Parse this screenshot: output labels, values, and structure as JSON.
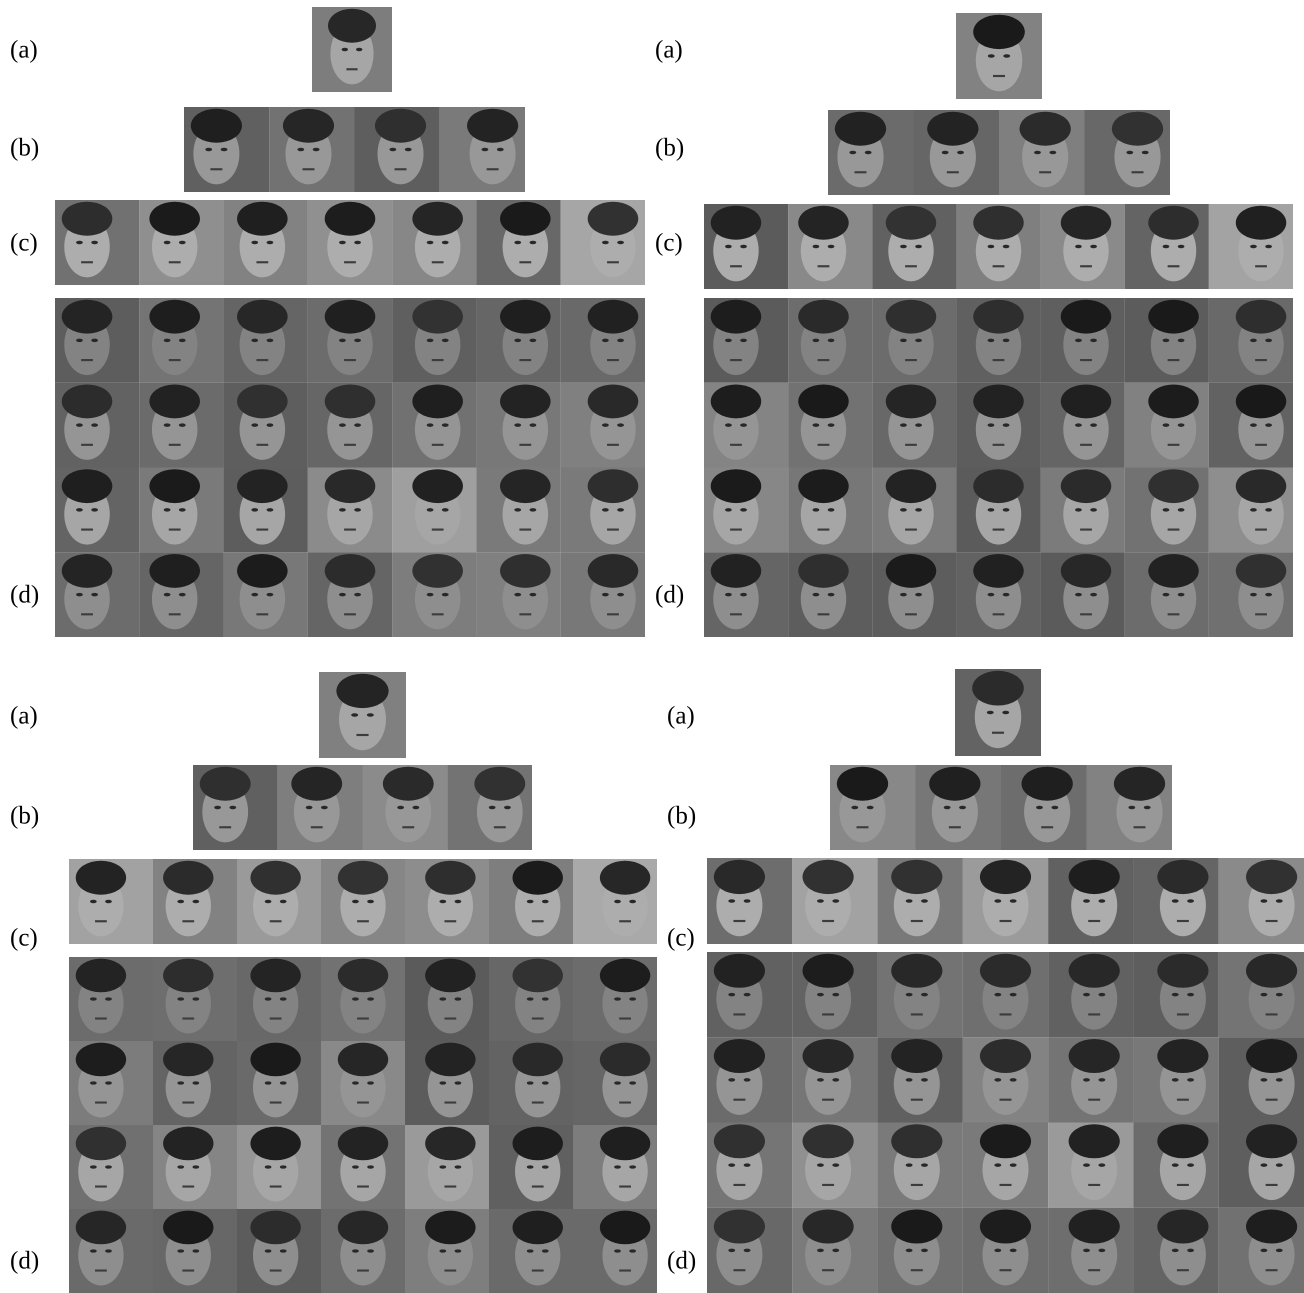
{
  "panels": [
    {
      "labels": [
        "(a)",
        "(b)",
        "(c)",
        "(d)"
      ]
    },
    {
      "labels": [
        "(a)",
        "(b)",
        "(c)",
        "(d)"
      ]
    },
    {
      "labels": [
        "(a)",
        "(b)",
        "(c)",
        "(d)"
      ]
    },
    {
      "labels": [
        "(a)",
        "(b)",
        "(c)",
        "(d)"
      ]
    }
  ]
}
